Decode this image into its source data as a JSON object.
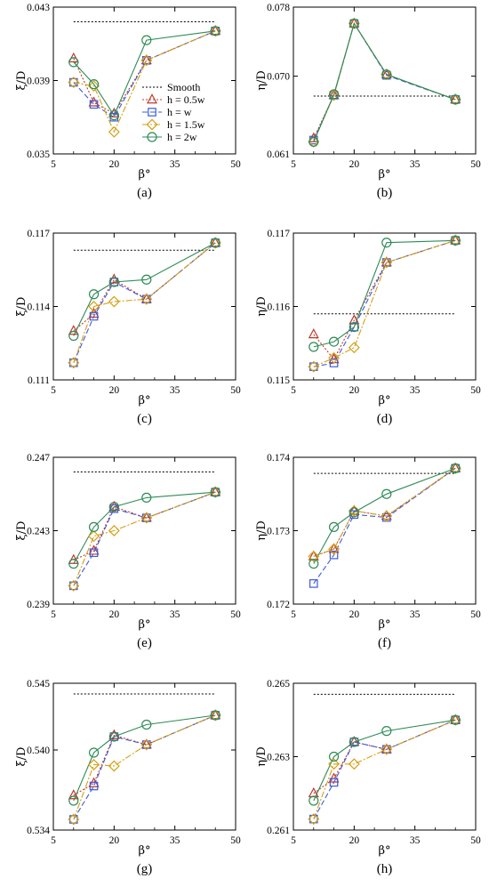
{
  "chart_data": [
    {
      "type": "line",
      "panel": "(a)",
      "xlabel": "β°",
      "ylabel": "ξ/D",
      "xlim": [
        5,
        50
      ],
      "ylim": [
        0.035,
        0.043
      ],
      "xticks": [
        "5",
        "20",
        "35",
        "50"
      ],
      "yticks": [
        "0.035",
        "0.039",
        "0.043"
      ],
      "smooth": {
        "x": [
          10,
          45
        ],
        "y": 0.0422
      },
      "x": [
        10,
        15,
        20,
        28,
        45
      ],
      "series": [
        {
          "name": "h = 0.5w",
          "values": [
            0.0402,
            0.0378,
            0.0372,
            0.0401,
            0.0417
          ]
        },
        {
          "name": "h = w",
          "values": [
            0.0389,
            0.0377,
            0.037,
            0.0401,
            0.0417
          ]
        },
        {
          "name": "h = 1.5w",
          "values": [
            0.0389,
            0.0387,
            0.0362,
            0.0401,
            0.0417
          ]
        },
        {
          "name": "h = 2w",
          "values": [
            0.04,
            0.0388,
            0.0371,
            0.0412,
            0.0417
          ]
        }
      ],
      "legend": {
        "placement": "right-middle",
        "entries": [
          "Smooth",
          "h = 0.5w",
          "h = w",
          "h = 1.5w",
          "h = 2w"
        ]
      }
    },
    {
      "type": "line",
      "panel": "(b)",
      "xlabel": "β°",
      "ylabel": "η/D",
      "xlim": [
        5,
        50
      ],
      "ylim": [
        0.061,
        0.078
      ],
      "xticks": [
        "5",
        "20",
        "35",
        "50"
      ],
      "yticks": [
        "0.061",
        "0.070",
        "0.078"
      ],
      "smooth": {
        "x": [
          10,
          45
        ],
        "y": 0.0677
      },
      "x": [
        10,
        15,
        20,
        28,
        45
      ],
      "series": [
        {
          "name": "h = 0.5w",
          "values": [
            0.0628,
            0.0678,
            0.0761,
            0.0702,
            0.0673
          ]
        },
        {
          "name": "h = w",
          "values": [
            0.0626,
            0.0678,
            0.0761,
            0.0701,
            0.0673
          ]
        },
        {
          "name": "h = 1.5w",
          "values": [
            0.0624,
            0.0678,
            0.0761,
            0.0702,
            0.0673
          ]
        },
        {
          "name": "h = 2w",
          "values": [
            0.0624,
            0.0679,
            0.0761,
            0.0702,
            0.0673
          ]
        }
      ]
    },
    {
      "type": "line",
      "panel": "(c)",
      "xlabel": "β°",
      "ylabel": "ξ/D",
      "xlim": [
        5,
        50
      ],
      "ylim": [
        0.111,
        0.117
      ],
      "xticks": [
        "5",
        "20",
        "35",
        "50"
      ],
      "yticks": [
        "0.111",
        "0.114",
        "0.117"
      ],
      "smooth": {
        "x": [
          10,
          45
        ],
        "y": 0.1163
      },
      "x": [
        10,
        15,
        20,
        28,
        45
      ],
      "series": [
        {
          "name": "h = 0.5w",
          "values": [
            0.113,
            0.1137,
            0.1151,
            0.1143,
            0.1166
          ]
        },
        {
          "name": "h = w",
          "values": [
            0.1117,
            0.1136,
            0.115,
            0.1143,
            0.1166
          ]
        },
        {
          "name": "h = 1.5w",
          "values": [
            0.1117,
            0.114,
            0.1142,
            0.1143,
            0.1166
          ]
        },
        {
          "name": "h = 2w",
          "values": [
            0.1128,
            0.1145,
            0.115,
            0.1151,
            0.1166
          ]
        }
      ]
    },
    {
      "type": "line",
      "panel": "(d)",
      "xlabel": "β°",
      "ylabel": "η/D",
      "xlim": [
        5,
        50
      ],
      "ylim": [
        0.115,
        0.117
      ],
      "xticks": [
        "5",
        "20",
        "35",
        "50"
      ],
      "yticks": [
        "0.115",
        "0.116",
        "0.117"
      ],
      "smooth": {
        "x": [
          10,
          45
        ],
        "y": 0.1159
      },
      "x": [
        10,
        15,
        20,
        28,
        45
      ],
      "series": [
        {
          "name": "h = 0.5w",
          "values": [
            0.11562,
            0.11528,
            0.11581,
            0.1166,
            0.1169
          ]
        },
        {
          "name": "h = w",
          "values": [
            0.11518,
            0.11523,
            0.11572,
            0.1166,
            0.1169
          ]
        },
        {
          "name": "h = 1.5w",
          "values": [
            0.11518,
            0.1153,
            0.11544,
            0.1166,
            0.1169
          ]
        },
        {
          "name": "h = 2w",
          "values": [
            0.11545,
            0.11552,
            0.11572,
            0.11687,
            0.1169
          ]
        }
      ]
    },
    {
      "type": "line",
      "panel": "(e)",
      "xlabel": "β°",
      "ylabel": "ξ/D",
      "xlim": [
        5,
        50
      ],
      "ylim": [
        0.239,
        0.247
      ],
      "xticks": [
        "5",
        "20",
        "35",
        "50"
      ],
      "yticks": [
        "0.239",
        "0.243",
        "0.247"
      ],
      "smooth": {
        "x": [
          10,
          45
        ],
        "y": 0.2462
      },
      "x": [
        10,
        15,
        20,
        28,
        45
      ],
      "series": [
        {
          "name": "h = 0.5w",
          "values": [
            0.2414,
            0.2419,
            0.2443,
            0.2437,
            0.2451
          ]
        },
        {
          "name": "h = w",
          "values": [
            0.24,
            0.2418,
            0.2442,
            0.2437,
            0.2451
          ]
        },
        {
          "name": "h = 1.5w",
          "values": [
            0.24,
            0.2427,
            0.243,
            0.2437,
            0.2451
          ]
        },
        {
          "name": "h = 2w",
          "values": [
            0.2412,
            0.2432,
            0.2443,
            0.2448,
            0.2451
          ]
        }
      ]
    },
    {
      "type": "line",
      "panel": "(f)",
      "xlabel": "β°",
      "ylabel": "η/D",
      "xlim": [
        5,
        50
      ],
      "ylim": [
        0.172,
        0.174
      ],
      "xticks": [
        "5",
        "20",
        "35",
        "50"
      ],
      "yticks": [
        "0.172",
        "0.173",
        "0.174"
      ],
      "smooth": {
        "x": [
          10,
          45
        ],
        "y": 0.17378
      },
      "x": [
        10,
        15,
        20,
        28,
        45
      ],
      "series": [
        {
          "name": "h = 0.5w",
          "values": [
            0.17265,
            0.17275,
            0.17327,
            0.1732,
            0.17385
          ]
        },
        {
          "name": "h = w",
          "values": [
            0.17228,
            0.17267,
            0.17322,
            0.17318,
            0.17385
          ]
        },
        {
          "name": "h = 1.5w",
          "values": [
            0.17265,
            0.17275,
            0.17327,
            0.1732,
            0.17385
          ]
        },
        {
          "name": "h = 2w",
          "values": [
            0.17255,
            0.17305,
            0.17325,
            0.1735,
            0.17385
          ]
        }
      ]
    },
    {
      "type": "line",
      "panel": "(g)",
      "xlabel": "β°",
      "ylabel": "ξ/D",
      "xlim": [
        5,
        50
      ],
      "ylim": [
        0.534,
        0.545
      ],
      "xticks": [
        "5",
        "20",
        "35",
        "50"
      ],
      "yticks": [
        "0.534",
        "0.540",
        "0.545"
      ],
      "smooth": {
        "x": [
          10,
          45
        ],
        "y": 0.5442
      },
      "x": [
        10,
        15,
        20,
        28,
        45
      ],
      "series": [
        {
          "name": "h = 0.5w",
          "values": [
            0.5366,
            0.5375,
            0.5411,
            0.5404,
            0.5426
          ]
        },
        {
          "name": "h = w",
          "values": [
            0.5348,
            0.5373,
            0.541,
            0.5404,
            0.5426
          ]
        },
        {
          "name": "h = 1.5w",
          "values": [
            0.5348,
            0.5389,
            0.5388,
            0.5404,
            0.5426
          ]
        },
        {
          "name": "h = 2w",
          "values": [
            0.5362,
            0.5398,
            0.541,
            0.5419,
            0.5426
          ]
        }
      ]
    },
    {
      "type": "line",
      "panel": "(h)",
      "xlabel": "β°",
      "ylabel": "η/D",
      "xlim": [
        5,
        50
      ],
      "ylim": [
        0.261,
        0.265
      ],
      "xticks": [
        "5",
        "20",
        "35",
        "50"
      ],
      "yticks": [
        "0.261",
        "0.263",
        "0.265"
      ],
      "smooth": {
        "x": [
          10,
          45
        ],
        "y": 0.2647
      },
      "x": [
        10,
        15,
        20,
        28,
        45
      ],
      "series": [
        {
          "name": "h = 0.5w",
          "values": [
            0.262,
            0.2624,
            0.2634,
            0.2632,
            0.264
          ]
        },
        {
          "name": "h = w",
          "values": [
            0.2613,
            0.2623,
            0.2634,
            0.2632,
            0.264
          ]
        },
        {
          "name": "h = 1.5w",
          "values": [
            0.2613,
            0.2628,
            0.2628,
            0.2632,
            0.264
          ]
        },
        {
          "name": "h = 2w",
          "values": [
            0.2618,
            0.263,
            0.2634,
            0.2637,
            0.264
          ]
        }
      ]
    }
  ],
  "series_styles": [
    {
      "color": "#c0392b",
      "marker": "triangle",
      "dash": "2,2"
    },
    {
      "color": "#3b5bdb",
      "marker": "square",
      "dash": "6,3"
    },
    {
      "color": "#d4a017",
      "marker": "diamond",
      "dash": "7,2,2,2"
    },
    {
      "color": "#2e8b57",
      "marker": "circle",
      "dash": ""
    }
  ],
  "smooth_color": "#000000"
}
